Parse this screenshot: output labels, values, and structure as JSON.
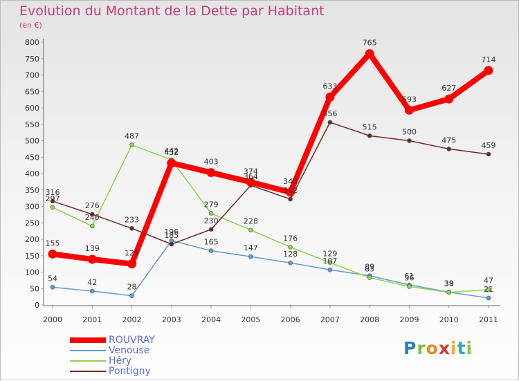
{
  "title": "Evolution du Montant de la Dette par Habitant",
  "subtitle": "(en €)",
  "brand": {
    "text": "Proxiti"
  },
  "chart_data": {
    "type": "line",
    "categories": [
      "2000",
      "2001",
      "2002",
      "2003",
      "2004",
      "2005",
      "2006",
      "2007",
      "2008",
      "2009",
      "2010",
      "2011"
    ],
    "ylim": [
      0,
      800
    ],
    "yticks": [
      0,
      50,
      100,
      150,
      200,
      250,
      300,
      350,
      400,
      450,
      500,
      550,
      600,
      650,
      700,
      750,
      800
    ],
    "grid": false,
    "legend_position": "bottom-left",
    "series": [
      {
        "name": "ROUVRAY",
        "color": "#ff0000",
        "values": [
          155,
          139,
          125,
          432,
          403,
          374,
          343,
          633,
          765,
          593,
          627,
          714
        ]
      },
      {
        "name": "Venouse",
        "color": "#5f9bd0",
        "values": [
          54,
          42,
          28,
          196,
          165,
          147,
          128,
          107,
          89,
          61,
          39,
          21
        ]
      },
      {
        "name": "Héry",
        "color": "#8fd34b",
        "values": [
          297,
          240,
          487,
          442,
          279,
          228,
          176,
          129,
          83,
          56,
          38,
          47
        ]
      },
      {
        "name": "Pontigny",
        "color": "#6e2a2a",
        "values": [
          316,
          276,
          233,
          185,
          230,
          364,
          322,
          556,
          515,
          500,
          475,
          459
        ]
      }
    ]
  }
}
